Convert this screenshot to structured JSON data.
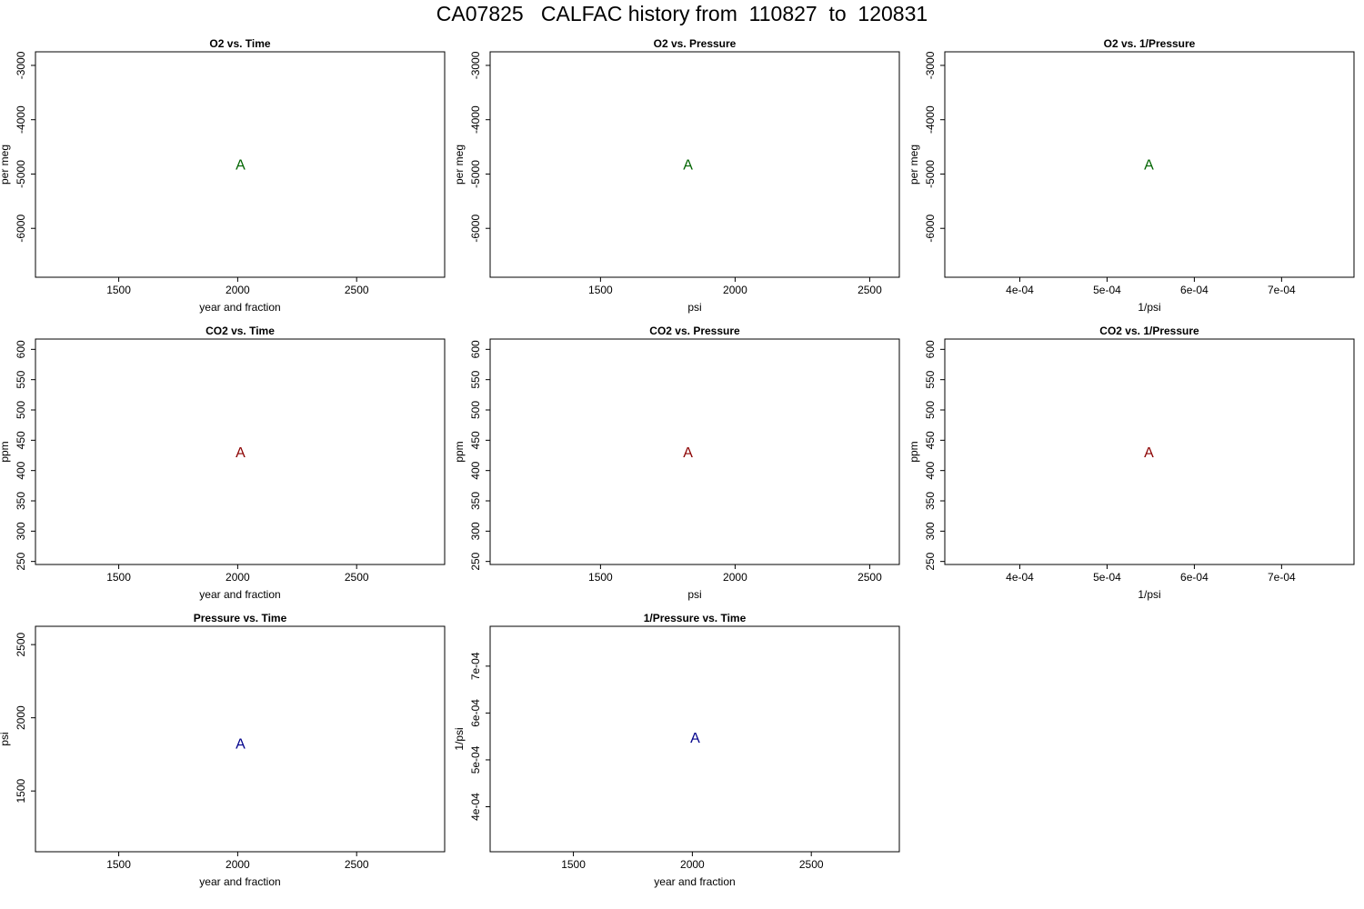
{
  "title": "CA07825   CALFAC history from  110827  to  120831",
  "colors": {
    "o2": "#006400",
    "co2": "#8b0000",
    "pressure": "#00008b"
  },
  "chart_data": [
    {
      "id": "o2-time",
      "type": "scatter",
      "title": "O2 vs. Time",
      "xlabel": "year and fraction",
      "ylabel": "per meg",
      "xlim": [
        1150,
        2870
      ],
      "ylim": [
        -6900,
        -2750
      ],
      "xticks": [
        1500,
        2000,
        2500
      ],
      "yticks": [
        -6000,
        -5000,
        -4000,
        -3000
      ],
      "xtick_labels": [
        "1500",
        "2000",
        "2500"
      ],
      "ytick_labels": [
        "-6000",
        "-5000",
        "-4000",
        "-3000"
      ],
      "ytick_rotated": true,
      "points": [
        {
          "x": 2011.7,
          "y": -4820,
          "label": "A"
        }
      ],
      "color": "#006400"
    },
    {
      "id": "o2-pressure",
      "type": "scatter",
      "title": "O2 vs. Pressure",
      "xlabel": "psi",
      "ylabel": "per meg",
      "xlim": [
        1090,
        2610
      ],
      "ylim": [
        -6900,
        -2750
      ],
      "xticks": [
        1500,
        2000,
        2500
      ],
      "yticks": [
        -6000,
        -5000,
        -4000,
        -3000
      ],
      "xtick_labels": [
        "1500",
        "2000",
        "2500"
      ],
      "ytick_labels": [
        "-6000",
        "-5000",
        "-4000",
        "-3000"
      ],
      "ytick_rotated": true,
      "points": [
        {
          "x": 1825,
          "y": -4820,
          "label": "A"
        }
      ],
      "color": "#006400"
    },
    {
      "id": "o2-inv-pressure",
      "type": "scatter",
      "title": "O2 vs. 1/Pressure",
      "xlabel": "1/psi",
      "ylabel": "per meg",
      "xlim": [
        0.000314,
        0.000783
      ],
      "ylim": [
        -6900,
        -2750
      ],
      "xticks": [
        0.0004,
        0.0005,
        0.0006,
        0.0007
      ],
      "yticks": [
        -6000,
        -5000,
        -4000,
        -3000
      ],
      "xtick_labels": [
        "4e-04",
        "5e-04",
        "6e-04",
        "7e-04"
      ],
      "ytick_labels": [
        "-6000",
        "-5000",
        "-4000",
        "-3000"
      ],
      "ytick_rotated": true,
      "points": [
        {
          "x": 0.000548,
          "y": -4820,
          "label": "A"
        }
      ],
      "color": "#006400"
    },
    {
      "id": "co2-time",
      "type": "scatter",
      "title": "CO2 vs. Time",
      "xlabel": "year and fraction",
      "ylabel": "ppm",
      "xlim": [
        1150,
        2870
      ],
      "ylim": [
        245,
        617
      ],
      "xticks": [
        1500,
        2000,
        2500
      ],
      "yticks": [
        250,
        300,
        350,
        400,
        450,
        500,
        550,
        600
      ],
      "xtick_labels": [
        "1500",
        "2000",
        "2500"
      ],
      "ytick_labels": [
        "250",
        "300",
        "350",
        "400",
        "450",
        "500",
        "550",
        "600"
      ],
      "ytick_rotated": true,
      "points": [
        {
          "x": 2011.7,
          "y": 431,
          "label": "A"
        }
      ],
      "color": "#8b0000"
    },
    {
      "id": "co2-pressure",
      "type": "scatter",
      "title": "CO2 vs. Pressure",
      "xlabel": "psi",
      "ylabel": "ppm",
      "xlim": [
        1090,
        2610
      ],
      "ylim": [
        245,
        617
      ],
      "xticks": [
        1500,
        2000,
        2500
      ],
      "yticks": [
        250,
        300,
        350,
        400,
        450,
        500,
        550,
        600
      ],
      "xtick_labels": [
        "1500",
        "2000",
        "2500"
      ],
      "ytick_labels": [
        "250",
        "300",
        "350",
        "400",
        "450",
        "500",
        "550",
        "600"
      ],
      "ytick_rotated": true,
      "points": [
        {
          "x": 1825,
          "y": 431,
          "label": "A"
        }
      ],
      "color": "#8b0000"
    },
    {
      "id": "co2-inv-pressure",
      "type": "scatter",
      "title": "CO2 vs. 1/Pressure",
      "xlabel": "1/psi",
      "ylabel": "ppm",
      "xlim": [
        0.000314,
        0.000783
      ],
      "ylim": [
        245,
        617
      ],
      "xticks": [
        0.0004,
        0.0005,
        0.0006,
        0.0007
      ],
      "yticks": [
        250,
        300,
        350,
        400,
        450,
        500,
        550,
        600
      ],
      "xtick_labels": [
        "4e-04",
        "5e-04",
        "6e-04",
        "7e-04"
      ],
      "ytick_labels": [
        "250",
        "300",
        "350",
        "400",
        "450",
        "500",
        "550",
        "600"
      ],
      "ytick_rotated": true,
      "points": [
        {
          "x": 0.000548,
          "y": 431,
          "label": "A"
        }
      ],
      "color": "#8b0000"
    },
    {
      "id": "pressure-time",
      "type": "scatter",
      "title": "Pressure vs. Time",
      "xlabel": "year and fraction",
      "ylabel": "psi",
      "xlim": [
        1150,
        2870
      ],
      "ylim": [
        1085,
        2625
      ],
      "xticks": [
        1500,
        2000,
        2500
      ],
      "yticks": [
        1500,
        2000,
        2500
      ],
      "xtick_labels": [
        "1500",
        "2000",
        "2500"
      ],
      "ytick_labels": [
        "1500",
        "2000",
        "2500"
      ],
      "ytick_rotated": true,
      "points": [
        {
          "x": 2011.7,
          "y": 1826,
          "label": "A"
        }
      ],
      "color": "#00008b"
    },
    {
      "id": "inv-pressure-time",
      "type": "scatter",
      "title": "1/Pressure vs. Time",
      "xlabel": "year and fraction",
      "ylabel": "1/psi",
      "xlim": [
        1150,
        2870
      ],
      "ylim": [
        0.000304,
        0.000785
      ],
      "xticks": [
        1500,
        2000,
        2500
      ],
      "yticks": [
        0.0004,
        0.0005,
        0.0006,
        0.0007
      ],
      "xtick_labels": [
        "1500",
        "2000",
        "2500"
      ],
      "ytick_labels": [
        "4e-04",
        "5e-04",
        "6e-04",
        "7e-04"
      ],
      "ytick_rotated": true,
      "points": [
        {
          "x": 2011.7,
          "y": 0.000548,
          "label": "A"
        }
      ],
      "color": "#00008b"
    }
  ]
}
